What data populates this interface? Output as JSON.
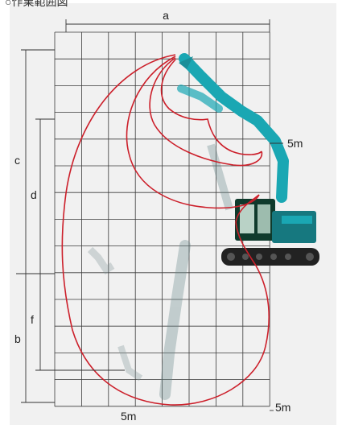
{
  "page": {
    "title": "○作業範囲図"
  },
  "labels": {
    "a": "a",
    "b": "b",
    "c": "c",
    "d": "d",
    "f": "f",
    "right_5m": "5m",
    "bottom_5m": "5m",
    "corner_5m": "5m"
  },
  "colors": {
    "envelope": "#cc1f2a",
    "grid": "#3a3a3a",
    "machine": "#1aa7b3",
    "track": "#222222"
  },
  "icons": {
    "excavator": "excavator-silhouette"
  }
}
